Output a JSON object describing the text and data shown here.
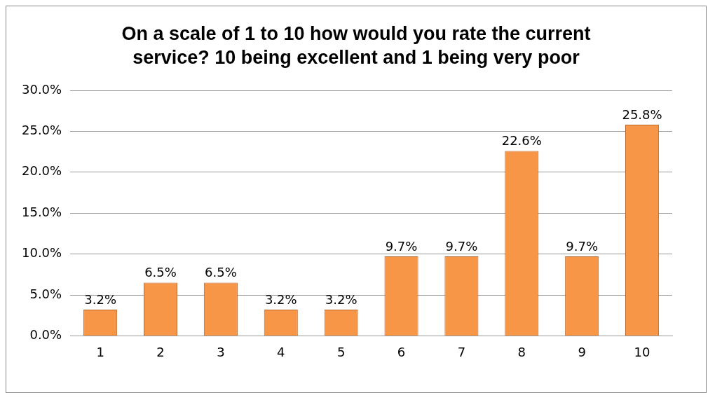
{
  "chart_data": {
    "type": "bar",
    "title": "On a scale of 1 to 10 how would you rate the current service? 10 being excellent and 1 being very poor",
    "categories": [
      "1",
      "2",
      "3",
      "4",
      "5",
      "6",
      "7",
      "8",
      "9",
      "10"
    ],
    "values": [
      3.2,
      6.5,
      6.5,
      3.2,
      3.2,
      9.7,
      9.7,
      22.6,
      9.7,
      25.8
    ],
    "value_labels": [
      "3.2%",
      "6.5%",
      "6.5%",
      "3.2%",
      "3.2%",
      "9.7%",
      "9.7%",
      "22.6%",
      "9.7%",
      "25.8%"
    ],
    "color": "#f79646",
    "ylim": [
      0,
      30
    ],
    "yticks": [
      {
        "value": 0,
        "label": "0.0%"
      },
      {
        "value": 5,
        "label": "5.0%"
      },
      {
        "value": 10,
        "label": "10.0%"
      },
      {
        "value": 15,
        "label": "15.0%"
      },
      {
        "value": 20,
        "label": "20.0%"
      },
      {
        "value": 25,
        "label": "25.0%"
      },
      {
        "value": 30,
        "label": "30.0%"
      }
    ],
    "grid": "y",
    "legend": false
  }
}
